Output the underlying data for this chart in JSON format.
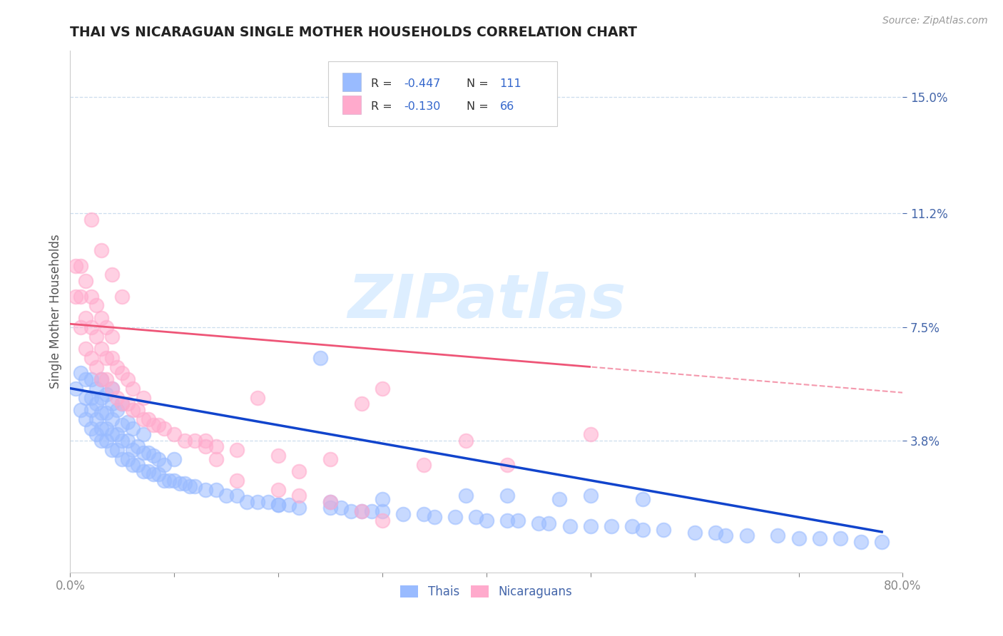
{
  "title": "THAI VS NICARAGUAN SINGLE MOTHER HOUSEHOLDS CORRELATION CHART",
  "source_text": "Source: ZipAtlas.com",
  "ylabel": "Single Mother Households",
  "xlim": [
    0.0,
    0.8
  ],
  "ylim": [
    -0.005,
    0.165
  ],
  "yticks": [
    0.038,
    0.075,
    0.112,
    0.15
  ],
  "ytick_labels": [
    "3.8%",
    "7.5%",
    "11.2%",
    "15.0%"
  ],
  "xticks": [
    0.0,
    0.1,
    0.2,
    0.3,
    0.4,
    0.5,
    0.6,
    0.7,
    0.8
  ],
  "xtick_labels_show": [
    "0.0%",
    "",
    "",
    "",
    "",
    "",
    "",
    "",
    "80.0%"
  ],
  "thai_color": "#99BBFF",
  "nic_color": "#FFAACC",
  "thai_line_color": "#1144CC",
  "nic_line_color": "#EE5577",
  "watermark": "ZIPatlas",
  "watermark_color": "#DDEEFF",
  "background_color": "#FFFFFF",
  "grid_color": "#CCDDEE",
  "title_color": "#222222",
  "axis_label_color": "#4466AA",
  "legend_r_color": "#3366CC",
  "legend_box_color": "#DDDDEE",
  "thai_intercept": 0.055,
  "thai_slope": -0.06,
  "nic_intercept": 0.076,
  "nic_slope": -0.028,
  "thai_scatter_x": [
    0.005,
    0.01,
    0.01,
    0.015,
    0.015,
    0.015,
    0.02,
    0.02,
    0.02,
    0.02,
    0.025,
    0.025,
    0.025,
    0.025,
    0.03,
    0.03,
    0.03,
    0.03,
    0.03,
    0.035,
    0.035,
    0.035,
    0.035,
    0.04,
    0.04,
    0.04,
    0.04,
    0.04,
    0.045,
    0.045,
    0.045,
    0.05,
    0.05,
    0.05,
    0.05,
    0.055,
    0.055,
    0.055,
    0.06,
    0.06,
    0.06,
    0.065,
    0.065,
    0.07,
    0.07,
    0.07,
    0.075,
    0.075,
    0.08,
    0.08,
    0.085,
    0.085,
    0.09,
    0.09,
    0.095,
    0.1,
    0.1,
    0.105,
    0.11,
    0.115,
    0.12,
    0.13,
    0.14,
    0.15,
    0.16,
    0.17,
    0.18,
    0.19,
    0.2,
    0.21,
    0.22,
    0.24,
    0.25,
    0.26,
    0.27,
    0.28,
    0.29,
    0.3,
    0.32,
    0.34,
    0.35,
    0.37,
    0.39,
    0.4,
    0.42,
    0.43,
    0.45,
    0.46,
    0.48,
    0.5,
    0.52,
    0.54,
    0.55,
    0.57,
    0.6,
    0.62,
    0.63,
    0.65,
    0.68,
    0.7,
    0.72,
    0.74,
    0.76,
    0.78,
    0.5,
    0.42,
    0.38,
    0.55,
    0.47,
    0.3,
    0.25,
    0.2
  ],
  "thai_scatter_y": [
    0.055,
    0.048,
    0.06,
    0.045,
    0.052,
    0.058,
    0.042,
    0.048,
    0.052,
    0.058,
    0.04,
    0.045,
    0.05,
    0.055,
    0.038,
    0.042,
    0.047,
    0.052,
    0.058,
    0.038,
    0.042,
    0.047,
    0.053,
    0.035,
    0.04,
    0.045,
    0.05,
    0.055,
    0.035,
    0.04,
    0.048,
    0.032,
    0.038,
    0.043,
    0.05,
    0.032,
    0.038,
    0.044,
    0.03,
    0.035,
    0.042,
    0.03,
    0.036,
    0.028,
    0.034,
    0.04,
    0.028,
    0.034,
    0.027,
    0.033,
    0.027,
    0.032,
    0.025,
    0.03,
    0.025,
    0.025,
    0.032,
    0.024,
    0.024,
    0.023,
    0.023,
    0.022,
    0.022,
    0.02,
    0.02,
    0.018,
    0.018,
    0.018,
    0.017,
    0.017,
    0.016,
    0.065,
    0.016,
    0.016,
    0.015,
    0.015,
    0.015,
    0.015,
    0.014,
    0.014,
    0.013,
    0.013,
    0.013,
    0.012,
    0.012,
    0.012,
    0.011,
    0.011,
    0.01,
    0.01,
    0.01,
    0.01,
    0.009,
    0.009,
    0.008,
    0.008,
    0.007,
    0.007,
    0.007,
    0.006,
    0.006,
    0.006,
    0.005,
    0.005,
    0.02,
    0.02,
    0.02,
    0.019,
    0.019,
    0.019,
    0.018,
    0.017
  ],
  "nic_scatter_x": [
    0.005,
    0.005,
    0.01,
    0.01,
    0.01,
    0.015,
    0.015,
    0.015,
    0.02,
    0.02,
    0.02,
    0.025,
    0.025,
    0.025,
    0.03,
    0.03,
    0.03,
    0.035,
    0.035,
    0.035,
    0.04,
    0.04,
    0.04,
    0.045,
    0.045,
    0.05,
    0.05,
    0.055,
    0.055,
    0.06,
    0.06,
    0.065,
    0.07,
    0.07,
    0.075,
    0.08,
    0.085,
    0.09,
    0.1,
    0.11,
    0.12,
    0.13,
    0.14,
    0.16,
    0.18,
    0.2,
    0.22,
    0.25,
    0.28,
    0.3,
    0.34,
    0.38,
    0.42,
    0.5,
    0.02,
    0.03,
    0.04,
    0.05,
    0.13,
    0.14,
    0.16,
    0.2,
    0.22,
    0.25,
    0.28,
    0.3
  ],
  "nic_scatter_y": [
    0.085,
    0.095,
    0.075,
    0.085,
    0.095,
    0.068,
    0.078,
    0.09,
    0.065,
    0.075,
    0.085,
    0.062,
    0.072,
    0.082,
    0.058,
    0.068,
    0.078,
    0.058,
    0.065,
    0.075,
    0.055,
    0.065,
    0.072,
    0.052,
    0.062,
    0.05,
    0.06,
    0.05,
    0.058,
    0.048,
    0.055,
    0.048,
    0.045,
    0.052,
    0.045,
    0.043,
    0.043,
    0.042,
    0.04,
    0.038,
    0.038,
    0.036,
    0.036,
    0.035,
    0.052,
    0.033,
    0.028,
    0.032,
    0.05,
    0.055,
    0.03,
    0.038,
    0.03,
    0.04,
    0.11,
    0.1,
    0.092,
    0.085,
    0.038,
    0.032,
    0.025,
    0.022,
    0.02,
    0.018,
    0.015,
    0.012
  ]
}
